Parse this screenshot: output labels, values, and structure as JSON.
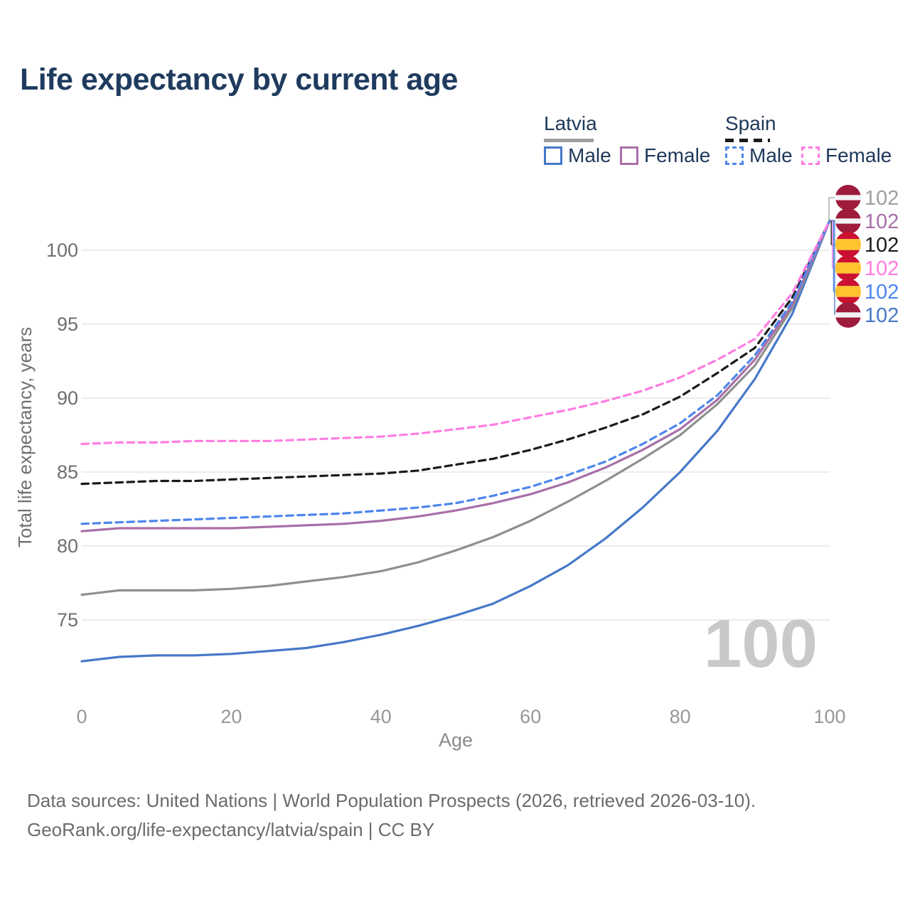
{
  "title": "Life expectancy by current age",
  "legend": {
    "groups": [
      {
        "label": "Latvia",
        "line_style": "solid",
        "line_color": "#9e9e9e"
      },
      {
        "label": "Spain",
        "line_style": "dashed",
        "line_color": "#1a1a1a"
      }
    ],
    "items": [
      {
        "label": "Male",
        "country": "Latvia",
        "color": "#4678c8",
        "style": "solid"
      },
      {
        "label": "Female",
        "country": "Latvia",
        "color": "#a86fa8",
        "style": "solid"
      },
      {
        "label": "Male",
        "country": "Spain",
        "color": "#4d86ec",
        "style": "dashed"
      },
      {
        "label": "Female",
        "country": "Spain",
        "color": "#ff7de1",
        "style": "dashed"
      }
    ]
  },
  "watermark": "100",
  "flags": {
    "latvia": {
      "colors": [
        "#9e1b3c",
        "#f2f2f4"
      ]
    },
    "spain": {
      "colors": [
        "#cb1130",
        "#ffc42e"
      ]
    }
  },
  "end_labels": [
    {
      "value": "102",
      "flag": "latvia",
      "series": "Latvia — Total",
      "color": "#9f9f9f"
    },
    {
      "value": "102",
      "flag": "latvia",
      "series": "Latvia — Female",
      "color": "#a86fa8"
    },
    {
      "value": "102",
      "flag": "spain",
      "series": "Spain — Total",
      "color": "#1a1a1a"
    },
    {
      "value": "102",
      "flag": "spain",
      "series": "Spain — Female",
      "color": "#ff7de1"
    },
    {
      "value": "102",
      "flag": "spain",
      "series": "Spain — Male",
      "color": "#4d86ec"
    },
    {
      "value": "102",
      "flag": "latvia",
      "series": "Latvia — Male",
      "color": "#4678c8"
    }
  ],
  "chart_data": {
    "type": "line",
    "title": "Life expectancy by current age",
    "xlabel": "Age",
    "ylabel": "Total life expectancy, years",
    "x_ticks": [
      0,
      20,
      40,
      60,
      80,
      100
    ],
    "y_ticks": [
      75,
      80,
      85,
      90,
      95,
      100
    ],
    "xlim": [
      0,
      100
    ],
    "ylim": [
      71.5,
      103
    ],
    "grid": "horizontal",
    "legend_position": "top-right",
    "x": [
      0,
      5,
      10,
      15,
      20,
      25,
      30,
      35,
      40,
      45,
      50,
      55,
      60,
      65,
      70,
      75,
      80,
      85,
      90,
      95,
      100
    ],
    "series": [
      {
        "name": "Latvia — Male",
        "country": "Latvia",
        "sex": "Male",
        "color": "#4678c8",
        "style": "solid",
        "values": [
          72.2,
          72.5,
          72.6,
          72.6,
          72.7,
          72.9,
          73.1,
          73.5,
          74.0,
          74.6,
          75.3,
          76.1,
          77.3,
          78.7,
          80.5,
          82.6,
          85.0,
          87.8,
          91.3,
          95.7,
          102
        ]
      },
      {
        "name": "Latvia — Total",
        "country": "Latvia",
        "sex": "Total",
        "color": "#8f8f8f",
        "style": "solid",
        "values": [
          76.7,
          77.0,
          77.0,
          77.0,
          77.1,
          77.3,
          77.6,
          77.9,
          78.3,
          78.9,
          79.7,
          80.6,
          81.7,
          83.0,
          84.4,
          85.9,
          87.5,
          89.6,
          92.2,
          96.1,
          102
        ]
      },
      {
        "name": "Latvia — Female",
        "country": "Latvia",
        "sex": "Female",
        "color": "#a86fa8",
        "style": "solid",
        "values": [
          81.0,
          81.2,
          81.2,
          81.2,
          81.2,
          81.3,
          81.4,
          81.5,
          81.7,
          82.0,
          82.4,
          82.9,
          83.5,
          84.3,
          85.3,
          86.5,
          87.9,
          89.9,
          92.6,
          96.3,
          102
        ]
      },
      {
        "name": "Spain — Total",
        "country": "Spain",
        "sex": "Total",
        "color": "#1a1a1a",
        "style": "dashed",
        "values": [
          84.2,
          84.3,
          84.4,
          84.4,
          84.5,
          84.6,
          84.7,
          84.8,
          84.9,
          85.1,
          85.5,
          85.9,
          86.5,
          87.2,
          88.0,
          88.9,
          90.1,
          91.7,
          93.4,
          96.8,
          102
        ]
      },
      {
        "name": "Spain — Male",
        "country": "Spain",
        "sex": "Male",
        "color": "#4d86ec",
        "style": "dashed",
        "values": [
          81.5,
          81.6,
          81.7,
          81.8,
          81.9,
          82.0,
          82.1,
          82.2,
          82.4,
          82.6,
          82.9,
          83.4,
          84.0,
          84.8,
          85.7,
          86.9,
          88.3,
          90.2,
          92.9,
          96.5,
          102
        ]
      },
      {
        "name": "Spain — Female",
        "country": "Spain",
        "sex": "Female",
        "color": "#ff7de1",
        "style": "dashed",
        "values": [
          86.9,
          87.0,
          87.0,
          87.1,
          87.1,
          87.1,
          87.2,
          87.3,
          87.4,
          87.6,
          87.9,
          88.2,
          88.7,
          89.2,
          89.8,
          90.5,
          91.4,
          92.6,
          94.0,
          97.1,
          102
        ]
      }
    ]
  },
  "footer": {
    "line1": "Data sources: United Nations | World Population Prospects (2026, retrieved 2026-03-10).",
    "line2": "GeoRank.org/life-expectancy/latvia/spain | CC BY"
  },
  "colors": {
    "title_text": "#1f3b5e",
    "axis_text": "#6f6f6f",
    "tick_text_x": "#979797",
    "gridline": "#e6e6e6",
    "watermark": "#c9c9c9"
  }
}
